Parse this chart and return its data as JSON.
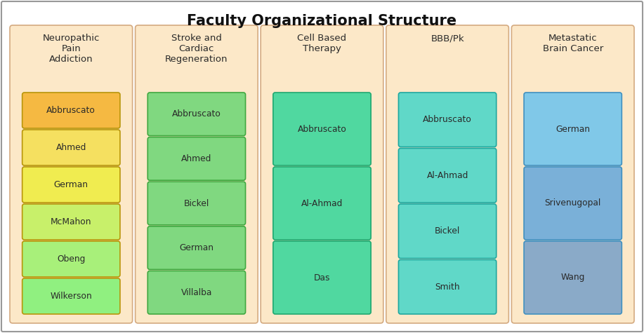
{
  "title": "Faculty Organizational Structure",
  "title_fontsize": 15,
  "background_color": "#ffffff",
  "figure_border_color": "#aaaaaa",
  "column_bg_color": "#fce8c8",
  "column_border_color": "#d4aa80",
  "columns": [
    {
      "header": "Neuropathic\nPain\nAddiction",
      "members": [
        "Abbruscato",
        "Ahmed",
        "German",
        "McMahon",
        "Obeng",
        "Wilkerson"
      ],
      "member_colors": [
        "#f5b942",
        "#f5e060",
        "#f0ec50",
        "#c8f06a",
        "#a8f07a",
        "#90f080"
      ],
      "box_border": "#b8960a"
    },
    {
      "header": "Stroke and\nCardiac\nRegeneration",
      "members": [
        "Abbruscato",
        "Ahmed",
        "Bickel",
        "German",
        "Villalba"
      ],
      "member_colors": [
        "#80d880",
        "#80d880",
        "#80d880",
        "#80d880",
        "#80d880"
      ],
      "box_border": "#40a840"
    },
    {
      "header": "Cell Based\nTherapy",
      "members": [
        "Abbruscato",
        "Al-Ahmad",
        "Das"
      ],
      "member_colors": [
        "#50d8a0",
        "#50d8a0",
        "#50d8a0"
      ],
      "box_border": "#20a870"
    },
    {
      "header": "BBB/Pk",
      "members": [
        "Abbruscato",
        "Al-Ahmad",
        "Bickel",
        "Smith"
      ],
      "member_colors": [
        "#60d8c8",
        "#60d8c8",
        "#60d8c8",
        "#60d8c8"
      ],
      "box_border": "#20a8a0"
    },
    {
      "header": "Metastatic\nBrain Cancer",
      "members": [
        "German",
        "Srivenugopal",
        "Wang"
      ],
      "member_colors": [
        "#80c8e8",
        "#7ab0d8",
        "#8aaac8"
      ],
      "box_border": "#4090c0"
    }
  ]
}
